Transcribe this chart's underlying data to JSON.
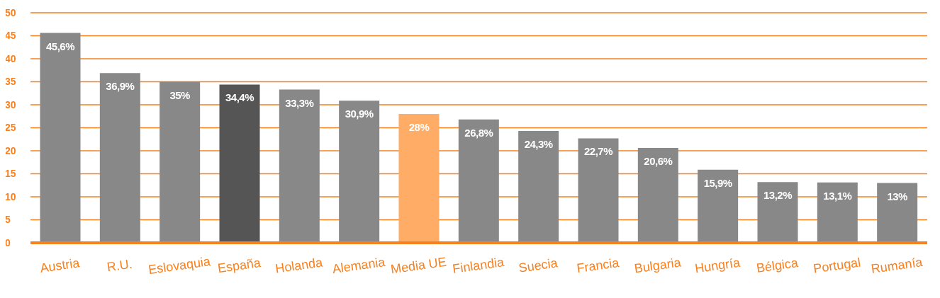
{
  "chart_data": {
    "type": "bar",
    "categories": [
      "Austria",
      "R.U.",
      "Eslovaquia",
      "España",
      "Holanda",
      "Alemania",
      "Media UE",
      "Finlandia",
      "Suecia",
      "Francia",
      "Bulgaria",
      "Hungría",
      "Bélgica",
      "Portugal",
      "Rumanía"
    ],
    "values": [
      45.6,
      36.9,
      35,
      34.4,
      33.3,
      30.9,
      28,
      26.8,
      24.3,
      22.7,
      20.6,
      15.9,
      13.2,
      13.1,
      13
    ],
    "colors": [
      "#888888",
      "#888888",
      "#888888",
      "#555555",
      "#888888",
      "#888888",
      "#ffad66",
      "#888888",
      "#888888",
      "#888888",
      "#888888",
      "#888888",
      "#888888",
      "#888888",
      "#888888"
    ],
    "value_labels": [
      "45,6%",
      "36,9%",
      "35%",
      "34,4%",
      "33,3%",
      "30,9%",
      "28%",
      "26,8%",
      "24,3%",
      "22,7%",
      "20,6%",
      "15,9%",
      "13,2%",
      "13,1%",
      "13%"
    ],
    "ylim": [
      0,
      50
    ],
    "yticks": [
      0,
      5,
      10,
      15,
      20,
      25,
      30,
      35,
      40,
      45,
      50
    ],
    "grid": "y"
  }
}
